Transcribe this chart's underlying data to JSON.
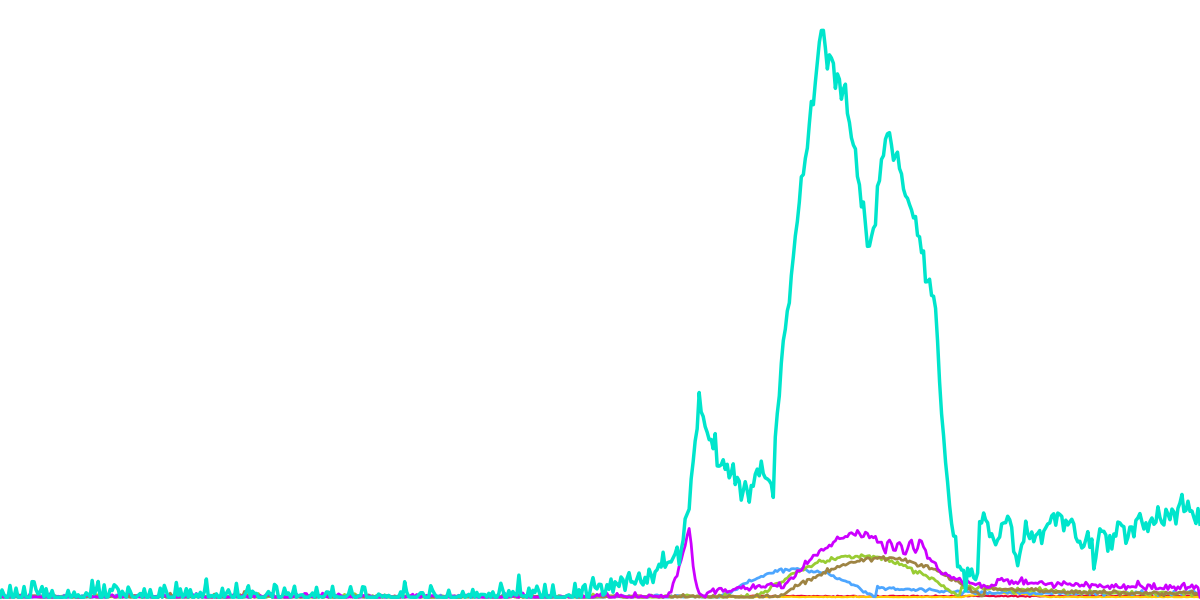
{
  "n_points": 600,
  "background_color": "#ffffff",
  "figsize": [
    12.0,
    6.0
  ],
  "dpi": 100,
  "eth_color": "#00e5cc",
  "purple_color": "#cc00ff",
  "blue_color": "#4da6ff",
  "green_color": "#99cc33",
  "brown_color": "#9e8443",
  "red_color": "#e8003c",
  "yellow_color": "#ffcc00"
}
